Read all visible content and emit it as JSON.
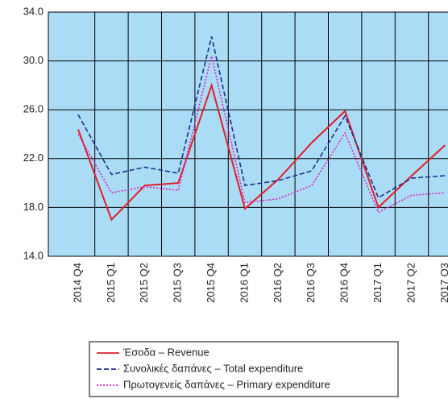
{
  "chart_data": {
    "type": "line",
    "categories": [
      "2014 Q4",
      "2015 Q1",
      "2015 Q2",
      "2015 Q3",
      "2015 Q4",
      "2016 Q1",
      "2016 Q2",
      "2016 Q3",
      "2016 Q4",
      "2017 Q1",
      "2017 Q2",
      "2017 Q3"
    ],
    "series": [
      {
        "name": "Έσοδα – Revenue",
        "color": "#e0202a",
        "dash": "solid",
        "values": [
          24.4,
          17.0,
          19.8,
          20.0,
          28.0,
          17.9,
          20.3,
          23.3,
          25.9,
          18.0,
          20.6,
          23.1
        ]
      },
      {
        "name": "Συνολικές δαπάνες – Total expenditure",
        "color": "#1f2f8f",
        "dash": "dashed",
        "values": [
          25.6,
          20.7,
          21.3,
          20.8,
          32.0,
          19.8,
          20.2,
          21.0,
          25.5,
          18.8,
          20.4,
          20.6
        ]
      },
      {
        "name": "Πρωτογενείς δαπάνες – Primary expenditure",
        "color": "#e020c0",
        "dash": "dotted",
        "values": [
          24.0,
          19.2,
          19.7,
          19.4,
          30.4,
          18.4,
          18.7,
          19.8,
          24.1,
          17.6,
          19.0,
          19.2
        ]
      }
    ],
    "ylim": [
      14,
      34
    ],
    "yticks": [
      {
        "value": 14,
        "label": "14.0"
      },
      {
        "value": 18,
        "label": "18.0"
      },
      {
        "value": 22,
        "label": "22.0"
      },
      {
        "value": 26,
        "label": "26.0"
      },
      {
        "value": 30,
        "label": "30.0"
      },
      {
        "value": 34,
        "label": "34.0"
      }
    ],
    "grid": true,
    "background": "#abdcf5"
  }
}
